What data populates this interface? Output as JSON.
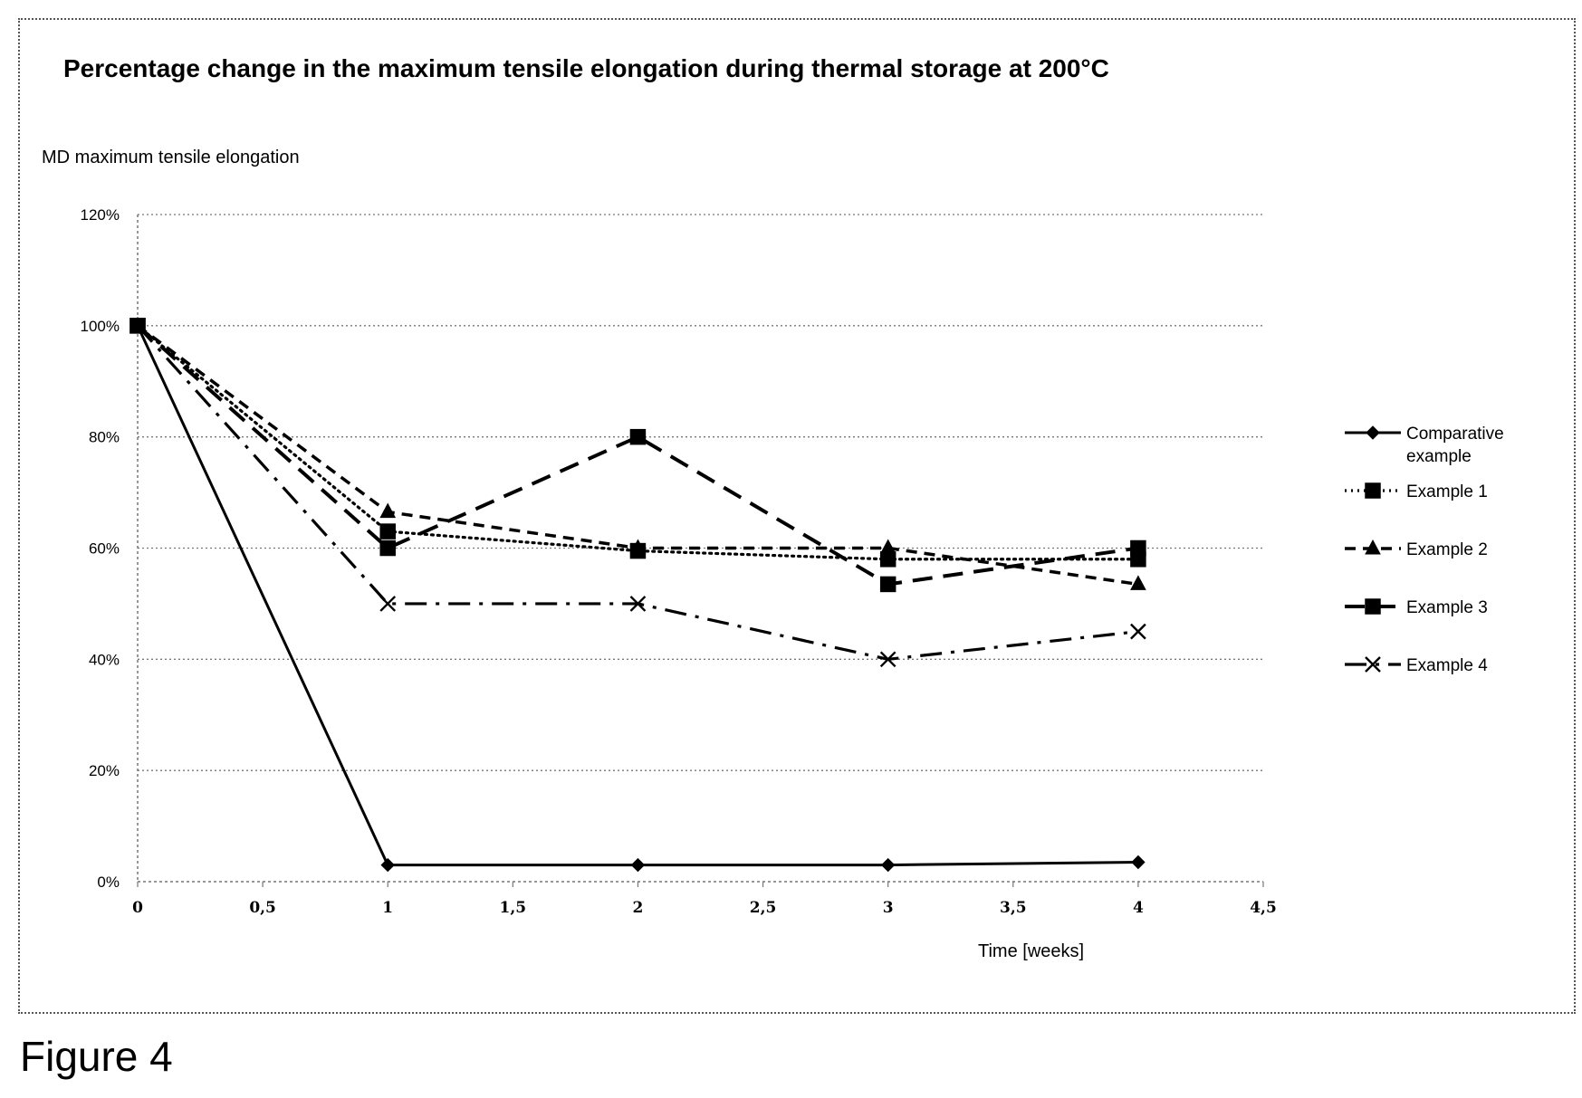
{
  "chart_data": {
    "type": "line",
    "title": "Percentage change in the maximum tensile elongation during thermal storage at 200°C",
    "ylabel": "MD maximum tensile elongation",
    "xlabel": "Time [weeks]",
    "xlim": [
      0,
      4.5
    ],
    "ylim": [
      0,
      120
    ],
    "x_ticks": [
      "0",
      "0,5",
      "1",
      "1,5",
      "2",
      "2,5",
      "3",
      "3,5",
      "4",
      "4,5"
    ],
    "y_ticks": [
      "0%",
      "20%",
      "40%",
      "60%",
      "80%",
      "100%",
      "120%"
    ],
    "grid": "horizontal",
    "legend_position": "right",
    "x": [
      0,
      1,
      2,
      3,
      4
    ],
    "series": [
      {
        "name": "Comparative example",
        "values": [
          100,
          3,
          3,
          3,
          3.5
        ],
        "line_style": "solid",
        "marker": "diamond"
      },
      {
        "name": "Example 1",
        "values": [
          100,
          63,
          59.5,
          58,
          58
        ],
        "line_style": "dotted",
        "marker": "square"
      },
      {
        "name": "Example 2",
        "values": [
          100,
          66.5,
          60,
          60,
          53.5
        ],
        "line_style": "dashed",
        "marker": "triangle"
      },
      {
        "name": "Example 3",
        "values": [
          100,
          60,
          80,
          53.5,
          60
        ],
        "line_style": "long-dash",
        "marker": "square"
      },
      {
        "name": "Example 4",
        "values": [
          100,
          50,
          50,
          40,
          45
        ],
        "line_style": "dash-dot",
        "marker": "cross"
      }
    ]
  },
  "figure_caption": "Figure 4"
}
